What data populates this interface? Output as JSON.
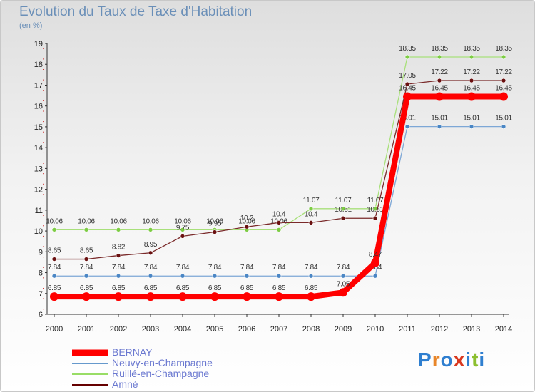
{
  "header": {
    "title": "Evolution du Taux de Taxe d'Habitation",
    "unit": "(en %)"
  },
  "brand": {
    "logo": "Proxiti",
    "letters": [
      "P",
      "r",
      "o",
      "x",
      "i",
      "t",
      "i"
    ],
    "letter_colors": [
      "#2f7fd0",
      "#e8862a",
      "#2f7fd0",
      "#d9381e",
      "#2f7fd0",
      "#8cbf2f",
      "#2f7fd0"
    ]
  },
  "legend": {
    "items": [
      {
        "label": "BERNAY",
        "color": "#ff0000"
      },
      {
        "label": "Neuvy-en-Champagne",
        "color": "#6699cc"
      },
      {
        "label": "Ruillé-en-Champagne",
        "color": "#99dd66"
      },
      {
        "label": "Amné",
        "color": "#660000"
      }
    ]
  },
  "chart_data": {
    "type": "line",
    "title": "Evolution du Taux de Taxe d'Habitation",
    "ylabel": "(en %)",
    "xlabel": "",
    "x": [
      2000,
      2001,
      2002,
      2003,
      2004,
      2005,
      2006,
      2007,
      2008,
      2009,
      2010,
      2011,
      2012,
      2013,
      2014
    ],
    "ylim": [
      6,
      19
    ],
    "yticks": [
      6,
      7,
      8,
      9,
      10,
      11,
      12,
      13,
      14,
      15,
      16,
      17,
      18,
      19
    ],
    "grid": false,
    "legend_position": "bottom-left",
    "series": [
      {
        "name": "Ruillé-en-Champagne",
        "color": "#99dd66",
        "line_color": "#a8e07a",
        "marker_color": "#7dcc44",
        "width": 1.3,
        "marker": 3,
        "values": [
          10.06,
          10.06,
          10.06,
          10.06,
          10.06,
          10.06,
          10.06,
          10.06,
          11.07,
          11.07,
          11.07,
          18.35,
          18.35,
          18.35,
          18.35
        ],
        "labels": [
          "10.06",
          "10.06",
          "10.06",
          "10.06",
          "10.06",
          "10.06",
          "10.06",
          "10.06",
          "11.07",
          "11.07",
          "11.07",
          "18.35",
          "18.35",
          "18.35",
          "18.35"
        ]
      },
      {
        "name": "Amné",
        "color": "#660000",
        "line_color": "#7a2a2a",
        "marker_color": "#6a1010",
        "width": 1.3,
        "marker": 3,
        "values": [
          8.65,
          8.65,
          8.82,
          8.95,
          9.75,
          9.95,
          10.2,
          10.4,
          10.4,
          10.61,
          10.61,
          17.05,
          17.22,
          17.22,
          17.22
        ],
        "labels": [
          "8.65",
          "8.65",
          "8.82",
          "8.95",
          "9.75",
          "9.95",
          "10.2",
          "10.4",
          "10.4",
          "10.61",
          "10.61",
          "17.05",
          "17.22",
          "17.22",
          "17.22"
        ]
      },
      {
        "name": "Neuvy-en-Champagne",
        "color": "#6699cc",
        "line_color": "#7da7d6",
        "marker_color": "#4a86c4",
        "width": 1.3,
        "marker": 3,
        "values": [
          7.84,
          7.84,
          7.84,
          7.84,
          7.84,
          7.84,
          7.84,
          7.84,
          7.84,
          7.84,
          7.84,
          15.01,
          15.01,
          15.01,
          15.01
        ],
        "labels": [
          "7.84",
          "7.84",
          "7.84",
          "7.84",
          "7.84",
          "7.84",
          "7.84",
          "7.84",
          "7.84",
          "7.84",
          "7.84",
          "15.01",
          "15.01",
          "15.01",
          "15.01"
        ]
      },
      {
        "name": "BERNAY",
        "color": "#ff0000",
        "line_color": "#ff0000",
        "marker_color": "#ff0000",
        "width": 8,
        "marker": 6,
        "values": [
          6.85,
          6.85,
          6.85,
          6.85,
          6.85,
          6.85,
          6.85,
          6.85,
          6.85,
          7.05,
          8.47,
          16.45,
          16.45,
          16.45,
          16.45
        ],
        "labels": [
          "6.85",
          "6.85",
          "6.85",
          "6.85",
          "6.85",
          "6.85",
          "6.85",
          "6.85",
          "6.85",
          "7.05",
          "8.47",
          "16.45",
          "16.45",
          "16.45",
          "16.45"
        ]
      }
    ]
  }
}
